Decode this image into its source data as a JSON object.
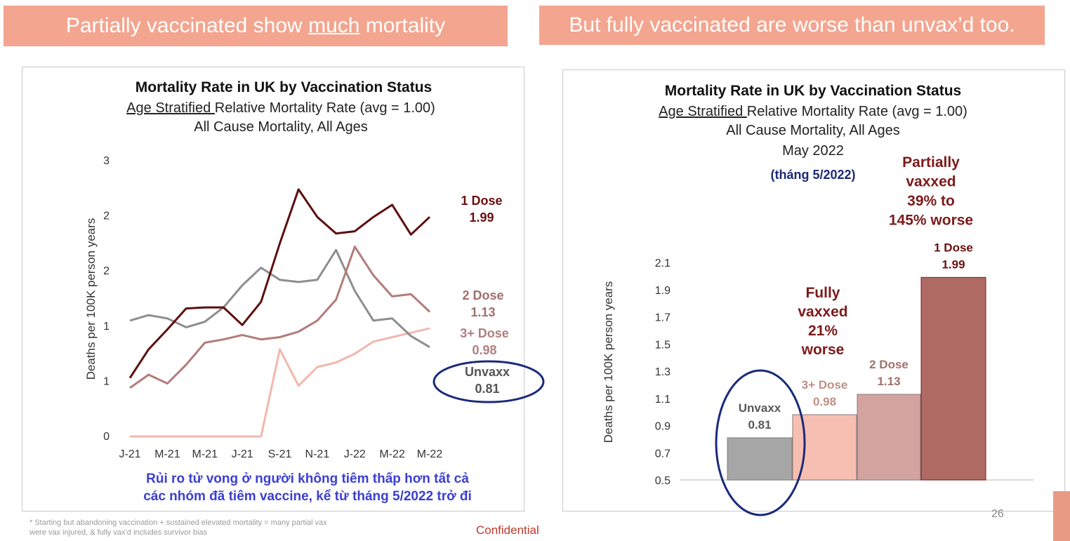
{
  "left_banner": {
    "text_before": "Partially vaccinated show ",
    "text_emph": "much",
    "text_after": " mortality"
  },
  "right_banner": {
    "text": "But fully vaccinated are worse than unvax’d too."
  },
  "footnote": {
    "line1": "* Starting but abandoning vaccination + sustained elevated mortality = many partial vax",
    "line2": "were vax injured, & fully vax’d includes survivor bias"
  },
  "confidential": "Confidential",
  "page_number": "26",
  "colors": {
    "dose1": "#5e0f0f",
    "dose2": "#b27c78",
    "dose3": "#f2b7ad",
    "unvax": "#8e8e8e",
    "annotation": "#7d1a1a",
    "vn_caption": "#3b3fd1",
    "circle": "#1a2a7a"
  },
  "chart_data": [
    {
      "type": "line",
      "title": "Mortality Rate in UK by Vaccination Status",
      "subtitle_underlined": "Age Stratified ",
      "subtitle_rest": "Relative Mortality Rate (avg = 1.00)",
      "subtitle2": "All Cause Mortality, All Ages",
      "ylabel": "Deaths per 100K person years",
      "ylim": [
        0,
        2.5
      ],
      "y_ticks": [
        {
          "value": 0,
          "label": "0"
        },
        {
          "value": 0.5,
          "label": "1"
        },
        {
          "value": 1.0,
          "label": "1"
        },
        {
          "value": 1.5,
          "label": "2"
        },
        {
          "value": 2.0,
          "label": "2"
        },
        {
          "value": 2.5,
          "label": "3"
        }
      ],
      "x_tick_labels": [
        "J-21",
        "M-21",
        "M-21",
        "J-21",
        "S-21",
        "N-21",
        "J-22",
        "M-22",
        "M-22"
      ],
      "series": [
        {
          "name": "1 Dose",
          "label_name": "1 Dose",
          "label_value": "1.99",
          "color": "#5e0f0f",
          "values": [
            0.53,
            0.79,
            0.97,
            1.16,
            1.17,
            1.17,
            1.01,
            1.22,
            1.75,
            2.24,
            1.99,
            1.84,
            1.86,
            1.99,
            2.1,
            1.83,
            1.99
          ]
        },
        {
          "name": "2 Dose",
          "label_name": "2 Dose",
          "label_value": "1.13",
          "color": "#b27c78",
          "values": [
            0.44,
            0.56,
            0.48,
            0.65,
            0.85,
            0.88,
            0.92,
            0.88,
            0.9,
            0.95,
            1.05,
            1.24,
            1.72,
            1.46,
            1.27,
            1.29,
            1.13
          ]
        },
        {
          "name": "3+ Dose",
          "label_name": "3+ Dose",
          "label_value": "0.98",
          "color": "#f2b7ad",
          "values": [
            0,
            0,
            0,
            0,
            0,
            0,
            0,
            0,
            0.79,
            0.46,
            0.63,
            0.67,
            0.75,
            0.86,
            0.9,
            0.94,
            0.98
          ]
        },
        {
          "name": "Unvaxx",
          "label_name": "Unvaxx",
          "label_value": "0.81",
          "color": "#8e8e8e",
          "values": [
            1.05,
            1.1,
            1.07,
            0.99,
            1.04,
            1.17,
            1.37,
            1.53,
            1.42,
            1.4,
            1.42,
            1.69,
            1.32,
            1.05,
            1.07,
            0.91,
            0.81
          ]
        }
      ],
      "vn_caption_line1": "Rủi ro tử vong ở người không tiêm thấp hơn tất cả",
      "vn_caption_line2": "các nhóm đã tiêm vaccine, kể từ tháng 5/2022 trở đi"
    },
    {
      "type": "bar",
      "title": "Mortality Rate in UK by Vaccination Status",
      "subtitle_underlined": "Age Stratified ",
      "subtitle_rest": "Relative Mortality Rate (avg = 1.00)",
      "subtitle2": "All Cause Mortality, All Ages",
      "subtitle3": "May 2022",
      "vn_month": "(tháng 5/2022)",
      "ylabel": "Deaths per 100K person years",
      "ylim": [
        0.5,
        2.1
      ],
      "y_ticks": [
        {
          "value": 0.5,
          "label": "0.5"
        },
        {
          "value": 0.7,
          "label": "0.7"
        },
        {
          "value": 0.9,
          "label": "0.9"
        },
        {
          "value": 1.1,
          "label": "1.1"
        },
        {
          "value": 1.3,
          "label": "1.3"
        },
        {
          "value": 1.5,
          "label": "1.5"
        },
        {
          "value": 1.7,
          "label": "1.7"
        },
        {
          "value": 1.9,
          "label": "1.9"
        },
        {
          "value": 2.1,
          "label": "2.1"
        }
      ],
      "categories": [
        "Unvaxx",
        "3+ Dose",
        "2 Dose",
        "1 Dose"
      ],
      "values": [
        0.81,
        0.98,
        1.13,
        1.99
      ],
      "value_labels": [
        "0.81",
        "0.98",
        "1.13",
        "1.99"
      ],
      "bar_colors": [
        "#a6a6a6",
        "#f6bfb2",
        "#d3a3a0",
        "#b06a64"
      ],
      "label_colors": [
        "#595959",
        "#c08f86",
        "#a0706b",
        "#6b0f0f"
      ],
      "annotations": {
        "fully": [
          "Fully",
          "vaxxed",
          "21%",
          "worse"
        ],
        "partially": [
          "Partially",
          "vaxxed",
          "39% to",
          "145% worse"
        ]
      }
    }
  ]
}
